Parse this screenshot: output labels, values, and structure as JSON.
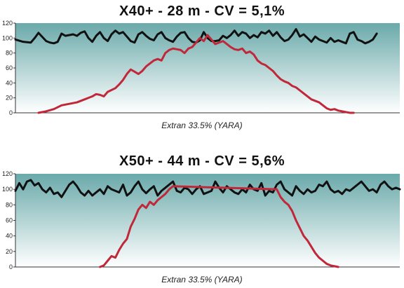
{
  "chart_data": [
    {
      "type": "line",
      "title": "X40+ - 28 m - CV = 5,1%",
      "caption": "Extran 33.5% (YARA)",
      "ylim": [
        0,
        120
      ],
      "yticks": [
        0,
        20,
        40,
        60,
        80,
        100,
        120
      ],
      "xlim": [
        0,
        100
      ],
      "grid": false,
      "background": {
        "top": "#6aa9aa",
        "bottom": "#ffffff"
      },
      "series": [
        {
          "color": "#111111",
          "x": [
            0,
            2,
            4,
            5,
            6,
            8,
            9,
            10,
            11,
            12,
            13,
            15,
            16,
            17,
            18,
            19,
            20,
            21,
            22,
            23,
            24,
            25,
            26,
            27,
            28,
            29,
            30,
            31,
            32,
            33,
            34,
            35,
            36,
            37,
            38,
            39,
            40,
            41,
            42,
            43,
            44,
            45,
            46,
            47,
            48,
            49,
            50,
            51,
            52,
            53,
            54,
            55,
            56,
            57,
            58,
            59,
            60,
            61,
            62,
            63,
            64,
            65,
            66,
            67,
            68,
            69,
            70,
            71,
            72,
            73,
            74,
            75,
            76,
            77,
            78,
            79,
            80,
            81,
            82,
            83,
            84,
            85,
            86,
            87,
            88,
            89,
            90,
            91,
            92,
            93,
            94
          ],
          "values": [
            98,
            95,
            94,
            100,
            107,
            96,
            94,
            93,
            95,
            106,
            103,
            105,
            103,
            107,
            109,
            100,
            95,
            103,
            108,
            100,
            96,
            105,
            110,
            106,
            108,
            102,
            96,
            94,
            105,
            108,
            103,
            99,
            97,
            105,
            108,
            100,
            97,
            95,
            102,
            107,
            108,
            100,
            95,
            94,
            97,
            108,
            100,
            96,
            96,
            97,
            103,
            100,
            104,
            110,
            103,
            108,
            106,
            100,
            104,
            101,
            108,
            106,
            110,
            103,
            108,
            101,
            96,
            98,
            104,
            112,
            102,
            105,
            100,
            95,
            102,
            98,
            96,
            94,
            100,
            95,
            97,
            95,
            93,
            106,
            108,
            98,
            96,
            93,
            95,
            98,
            106
          ]
        },
        {
          "color": "#c0283a",
          "x": [
            6,
            8,
            10,
            12,
            14,
            16,
            18,
            20,
            21,
            22,
            23,
            24,
            26,
            27,
            28,
            29,
            30,
            31,
            32,
            33,
            34,
            35,
            36,
            37,
            38,
            39,
            40,
            41,
            42,
            43,
            44,
            45,
            46,
            47,
            48,
            49,
            50,
            51,
            52,
            53,
            54,
            55,
            56,
            57,
            58,
            59,
            60,
            61,
            62,
            63,
            64,
            65,
            66,
            67,
            68,
            69,
            70,
            71,
            72,
            73,
            74,
            75,
            76,
            77,
            78,
            79,
            80,
            81,
            82,
            83,
            84,
            85,
            86,
            87,
            88
          ],
          "values": [
            0,
            2,
            5,
            10,
            12,
            14,
            18,
            22,
            25,
            24,
            22,
            28,
            33,
            38,
            44,
            52,
            58,
            55,
            52,
            56,
            62,
            66,
            70,
            72,
            70,
            80,
            84,
            86,
            85,
            84,
            80,
            86,
            88,
            94,
            100,
            96,
            104,
            98,
            92,
            94,
            96,
            92,
            88,
            85,
            84,
            86,
            80,
            82,
            78,
            70,
            66,
            64,
            60,
            56,
            50,
            45,
            42,
            40,
            36,
            34,
            30,
            26,
            22,
            18,
            16,
            14,
            10,
            6,
            4,
            5,
            3,
            2,
            1,
            0,
            0
          ]
        }
      ]
    },
    {
      "type": "line",
      "title": "X50+ - 44 m - CV = 5,6%",
      "caption": "Extran 33.5% (YARA)",
      "ylim": [
        0,
        120
      ],
      "yticks": [
        0,
        20,
        40,
        60,
        80,
        100,
        120
      ],
      "xlim": [
        0,
        100
      ],
      "grid": false,
      "background": {
        "top": "#6aa9aa",
        "bottom": "#ffffff"
      },
      "series": [
        {
          "color": "#111111",
          "x": [
            0,
            1,
            2,
            3,
            4,
            5,
            6,
            7,
            8,
            9,
            10,
            11,
            12,
            13,
            14,
            15,
            16,
            17,
            18,
            19,
            20,
            21,
            22,
            23,
            24,
            25,
            26,
            27,
            28,
            29,
            30,
            31,
            32,
            33,
            34,
            35,
            36,
            37,
            38,
            39,
            40,
            41,
            42,
            43,
            44,
            45,
            46,
            47,
            48,
            49,
            50,
            51,
            52,
            53,
            54,
            55,
            56,
            57,
            58,
            59,
            60,
            61,
            62,
            63,
            64,
            65,
            66,
            67,
            68,
            69,
            70,
            71,
            72,
            73,
            74,
            75,
            76,
            77,
            78,
            79,
            80,
            81,
            82,
            83,
            84,
            85,
            86,
            87,
            88,
            89,
            90,
            91,
            92,
            93,
            94,
            95,
            96,
            97,
            98,
            99,
            100
          ],
          "values": [
            98,
            108,
            100,
            110,
            112,
            105,
            108,
            100,
            96,
            102,
            94,
            96,
            90,
            98,
            106,
            110,
            104,
            96,
            92,
            98,
            92,
            96,
            100,
            94,
            104,
            100,
            98,
            96,
            106,
            92,
            96,
            104,
            110,
            100,
            95,
            100,
            104,
            92,
            98,
            102,
            106,
            110,
            98,
            96,
            102,
            100,
            94,
            100,
            104,
            94,
            96,
            98,
            110,
            102,
            96,
            104,
            100,
            96,
            94,
            100,
            96,
            106,
            100,
            98,
            108,
            92,
            98,
            96,
            106,
            110,
            100,
            96,
            92,
            104,
            98,
            94,
            100,
            96,
            98,
            106,
            104,
            110,
            100,
            96,
            98,
            94,
            100,
            98,
            102,
            106,
            110,
            104,
            98,
            100,
            96,
            106,
            110,
            104,
            100,
            102,
            100
          ]
        },
        {
          "color": "#c0283a",
          "x": [
            22,
            23,
            24,
            25,
            26,
            27,
            28,
            29,
            30,
            31,
            32,
            33,
            34,
            35,
            36,
            37,
            38,
            39,
            40,
            41,
            68,
            69,
            70,
            71,
            72,
            73,
            74,
            75,
            76,
            77,
            78,
            79,
            80,
            81,
            82,
            83,
            84
          ],
          "values": [
            0,
            2,
            8,
            14,
            12,
            22,
            30,
            36,
            52,
            62,
            74,
            80,
            76,
            84,
            80,
            86,
            90,
            94,
            100,
            104,
            100,
            90,
            84,
            80,
            72,
            60,
            50,
            40,
            34,
            26,
            18,
            12,
            8,
            4,
            2,
            1,
            0
          ]
        }
      ]
    }
  ]
}
